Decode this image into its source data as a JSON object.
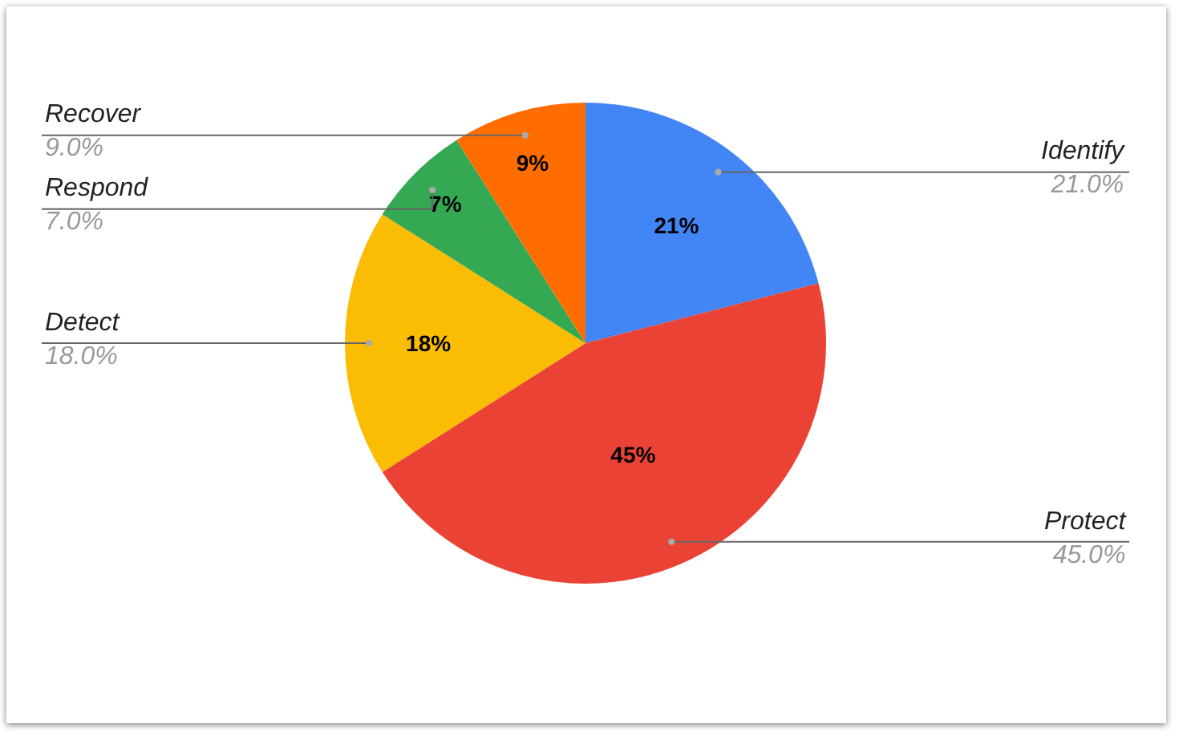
{
  "chart_data": {
    "type": "pie",
    "categories": [
      "Identify",
      "Protect",
      "Detect",
      "Respond",
      "Recover"
    ],
    "values": [
      21,
      45,
      18,
      7,
      9
    ],
    "colors": [
      "#4285f4",
      "#ea4335",
      "#fbbc04",
      "#34a853",
      "#ff6d01"
    ],
    "value_labels": [
      "21%",
      "45%",
      "18%",
      "7%",
      "9%"
    ],
    "annotations": [
      "21.0%",
      "45.0%",
      "18.0%",
      "7.0%",
      "9.0%"
    ],
    "legend": false
  }
}
